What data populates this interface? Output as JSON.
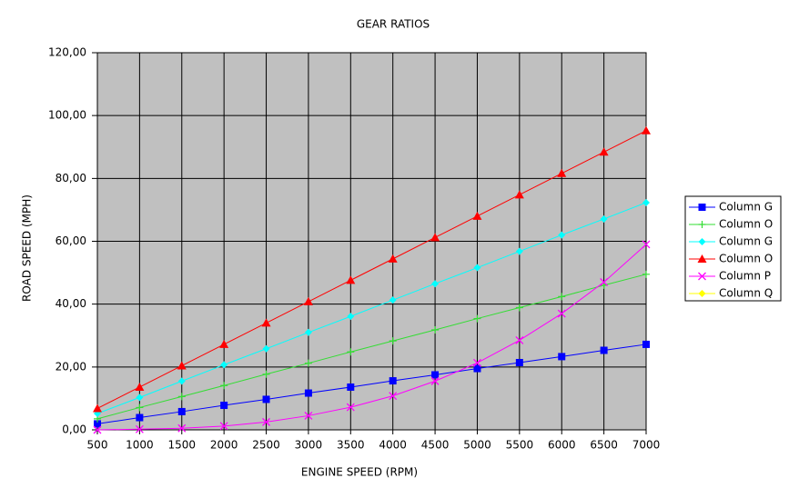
{
  "chart_data": {
    "type": "line",
    "title": "GEAR RATIOS",
    "x_label": "ENGINE SPEED (RPM)",
    "y_label": "ROAD SPEED (MPH)",
    "x": [
      500,
      1000,
      1500,
      2000,
      2500,
      3000,
      3500,
      4000,
      4500,
      5000,
      5500,
      6000,
      6500,
      7000
    ],
    "xlim": [
      500,
      7000
    ],
    "xticks": [
      500,
      1000,
      1500,
      2000,
      2500,
      3000,
      3500,
      4000,
      4500,
      5000,
      5500,
      6000,
      6500,
      7000
    ],
    "ylim": [
      0,
      120
    ],
    "yticks": [
      {
        "value": 0,
        "label": "0,00"
      },
      {
        "value": 20,
        "label": "20,00"
      },
      {
        "value": 40,
        "label": "40,00"
      },
      {
        "value": 60,
        "label": "60,00"
      },
      {
        "value": 80,
        "label": "80,00"
      },
      {
        "value": 100,
        "label": "100,00"
      },
      {
        "value": 120,
        "label": "120,00"
      }
    ],
    "grid": true,
    "legend": "right",
    "series": [
      {
        "name": "Column G",
        "color": "#0000ff",
        "marker": "square",
        "values": [
          1.9,
          3.9,
          5.8,
          7.8,
          9.7,
          11.7,
          13.6,
          15.6,
          17.5,
          19.5,
          21.4,
          23.3,
          25.3,
          27.2
        ]
      },
      {
        "name": "Column O",
        "color": "#33dd33",
        "marker": "plus",
        "values": [
          3.5,
          7.1,
          10.6,
          14.1,
          17.7,
          21.2,
          24.8,
          28.3,
          31.8,
          35.4,
          38.9,
          42.4,
          46.0,
          49.5
        ]
      },
      {
        "name": "Column G",
        "color": "#00ffff",
        "marker": "diamond",
        "values": [
          5.2,
          10.3,
          15.5,
          20.7,
          25.8,
          31.0,
          36.1,
          41.3,
          46.5,
          51.6,
          56.8,
          62.0,
          67.1,
          72.3
        ]
      },
      {
        "name": "Column O",
        "color": "#ff0000",
        "marker": "triangle",
        "values": [
          6.8,
          13.6,
          20.4,
          27.2,
          34.0,
          40.8,
          47.6,
          54.4,
          61.2,
          68.0,
          74.8,
          81.6,
          88.4,
          95.2
        ]
      },
      {
        "name": "Column P",
        "color": "#ff00ff",
        "marker": "cross",
        "values": [
          0,
          0.2,
          0.5,
          1.2,
          2.5,
          4.5,
          7.2,
          10.8,
          15.5,
          21.3,
          28.5,
          37,
          47,
          59
        ]
      },
      {
        "name": "Column Q",
        "color": "#ffff00",
        "marker": "diamond",
        "values": [
          null,
          null,
          null,
          null,
          null,
          null,
          null,
          null,
          null,
          null,
          null,
          null,
          null,
          null
        ]
      }
    ]
  }
}
